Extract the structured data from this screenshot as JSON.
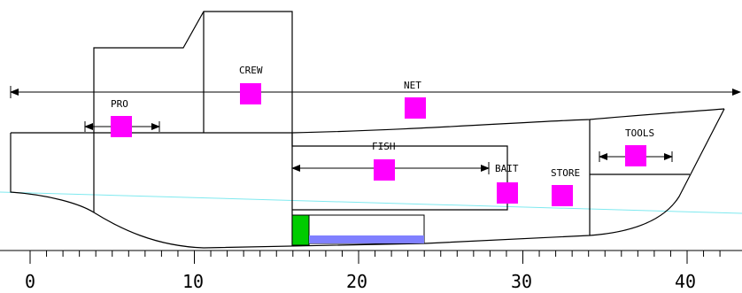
{
  "compartments": [
    {
      "id": "crew",
      "label": "CREW"
    },
    {
      "id": "net",
      "label": "NET"
    },
    {
      "id": "pro",
      "label": "PRO"
    },
    {
      "id": "fish",
      "label": "FISH"
    },
    {
      "id": "bait",
      "label": "BAIT"
    },
    {
      "id": "store",
      "label": "STORE"
    },
    {
      "id": "tools",
      "label": "TOOLS"
    }
  ],
  "scale": {
    "min": 0,
    "max": 42,
    "major_step": 10,
    "labels": [
      "0",
      "10",
      "20",
      "30",
      "40"
    ]
  },
  "colors": {
    "marker": "#ff00ff",
    "waterline": "#7fe9ef",
    "tank_green": "#00cc00",
    "tank_blue": "#8080ff",
    "line": "#000000"
  }
}
